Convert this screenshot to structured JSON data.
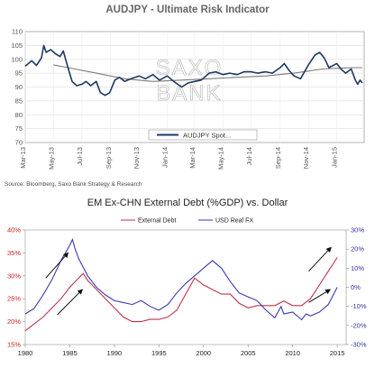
{
  "chart_data": [
    {
      "type": "line",
      "title": "AUDJPY - Ultimate Risk Indicator",
      "ylim": [
        70,
        110
      ],
      "y_ticks": [
        "70",
        "75",
        "80",
        "85",
        "90",
        "95",
        "100",
        "105",
        "110"
      ],
      "x_ticks": [
        "Mar-13",
        "May-13",
        "Jul-13",
        "Sep-13",
        "Nov-13",
        "Jan-14",
        "Mar-14",
        "May-14",
        "Jul-14",
        "Sep-14",
        "Nov-14",
        "Jan-15"
      ],
      "x_range": [
        "2013-03-01",
        "2015-03-01"
      ],
      "grid": true,
      "legend": "bottom-center",
      "watermark": [
        "SAXO",
        "BANK"
      ],
      "source": "Source: Bloomberg, Saxo Bank Strategy & Research",
      "series": [
        {
          "name": "AUDJPY Spot...",
          "color": "#1f3864",
          "points": [
            [
              "2013-03-01",
              97.5
            ],
            [
              "2013-03-15",
              99.5
            ],
            [
              "2013-03-25",
              97.8
            ],
            [
              "2013-04-05",
              100.5
            ],
            [
              "2013-04-10",
              105.0
            ],
            [
              "2013-04-15",
              102.5
            ],
            [
              "2013-04-25",
              103.5
            ],
            [
              "2013-05-05",
              102.0
            ],
            [
              "2013-05-15",
              101.0
            ],
            [
              "2013-05-22",
              103.0
            ],
            [
              "2013-06-01",
              97.0
            ],
            [
              "2013-06-10",
              92.0
            ],
            [
              "2013-06-20",
              90.5
            ],
            [
              "2013-07-01",
              91.0
            ],
            [
              "2013-07-10",
              92.0
            ],
            [
              "2013-07-20",
              90.5
            ],
            [
              "2013-08-01",
              92.0
            ],
            [
              "2013-08-10",
              88.0
            ],
            [
              "2013-08-20",
              87.0
            ],
            [
              "2013-08-30",
              88.0
            ],
            [
              "2013-09-10",
              92.5
            ],
            [
              "2013-09-20",
              93.5
            ],
            [
              "2013-10-01",
              92.0
            ],
            [
              "2013-10-15",
              93.0
            ],
            [
              "2013-11-01",
              94.0
            ],
            [
              "2013-11-15",
              93.0
            ],
            [
              "2013-12-01",
              94.5
            ],
            [
              "2013-12-15",
              92.5
            ],
            [
              "2014-01-01",
              94.0
            ],
            [
              "2014-01-15",
              92.0
            ],
            [
              "2014-02-01",
              90.0
            ],
            [
              "2014-02-15",
              91.5
            ],
            [
              "2014-03-01",
              92.0
            ],
            [
              "2014-03-15",
              92.5
            ],
            [
              "2014-04-01",
              95.0
            ],
            [
              "2014-04-15",
              95.5
            ],
            [
              "2014-05-01",
              94.5
            ],
            [
              "2014-05-15",
              95.0
            ],
            [
              "2014-06-01",
              94.5
            ],
            [
              "2014-06-15",
              95.5
            ],
            [
              "2014-07-01",
              95.5
            ],
            [
              "2014-07-15",
              95.0
            ],
            [
              "2014-08-01",
              95.5
            ],
            [
              "2014-08-15",
              95.0
            ],
            [
              "2014-09-01",
              97.0
            ],
            [
              "2014-09-10",
              98.5
            ],
            [
              "2014-09-20",
              96.0
            ],
            [
              "2014-10-01",
              94.0
            ],
            [
              "2014-10-15",
              93.0
            ],
            [
              "2014-11-01",
              98.0
            ],
            [
              "2014-11-15",
              101.5
            ],
            [
              "2014-11-25",
              102.5
            ],
            [
              "2014-12-05",
              100.5
            ],
            [
              "2014-12-15",
              97.0
            ],
            [
              "2015-01-01",
              98.5
            ],
            [
              "2015-01-10",
              96.5
            ],
            [
              "2015-01-20",
              95.0
            ],
            [
              "2015-02-01",
              96.5
            ],
            [
              "2015-02-10",
              92.5
            ],
            [
              "2015-02-15",
              91.0
            ],
            [
              "2015-02-20",
              92.5
            ],
            [
              "2015-02-25",
              91.5
            ]
          ]
        },
        {
          "name": "",
          "color": "#7a7a7a",
          "points": [
            [
              "2013-05-01",
              98.0
            ],
            [
              "2013-06-01",
              97.0
            ],
            [
              "2013-08-01",
              95.0
            ],
            [
              "2013-10-01",
              93.0
            ],
            [
              "2013-12-01",
              92.0
            ],
            [
              "2014-02-01",
              92.5
            ],
            [
              "2014-04-01",
              93.0
            ],
            [
              "2014-06-01",
              93.5
            ],
            [
              "2014-08-01",
              94.0
            ],
            [
              "2014-10-01",
              95.0
            ],
            [
              "2014-12-01",
              96.5
            ],
            [
              "2015-02-01",
              97.0
            ],
            [
              "2015-02-25",
              97.0
            ]
          ]
        }
      ]
    },
    {
      "type": "line",
      "title": "EM Ex-CHN External Debt (%GDP) vs. Dollar",
      "xlim": [
        1980,
        2016
      ],
      "x_ticks": [
        "1980",
        "1985",
        "1990",
        "1995",
        "2000",
        "2005",
        "2010",
        "2015"
      ],
      "y_left": {
        "ylim": [
          15,
          40
        ],
        "ticks": [
          "15%",
          "20%",
          "25%",
          "30%",
          "35%",
          "40%"
        ],
        "color": "#cc2222"
      },
      "y_right": {
        "ylim": [
          -30,
          30
        ],
        "ticks": [
          "-30%",
          "-20%",
          "-10%",
          "0%",
          "10%",
          "20%",
          "30%"
        ],
        "color": "#3333aa"
      },
      "legend": "top-center",
      "series": [
        {
          "name": "External Debt",
          "axis": "left",
          "color": "#c0304a",
          "points": [
            [
              1980,
              18.0
            ],
            [
              1981,
              19.5
            ],
            [
              1982,
              21.0
            ],
            [
              1983,
              23.0
            ],
            [
              1984,
              25.0
            ],
            [
              1985,
              27.5
            ],
            [
              1986,
              29.5
            ],
            [
              1986.5,
              30.5
            ],
            [
              1987,
              29.0
            ],
            [
              1988,
              27.0
            ],
            [
              1989,
              25.0
            ],
            [
              1990,
              23.0
            ],
            [
              1991,
              21.0
            ],
            [
              1992,
              20.0
            ],
            [
              1993,
              20.0
            ],
            [
              1994,
              20.5
            ],
            [
              1995,
              20.5
            ],
            [
              1996,
              21.0
            ],
            [
              1997,
              22.5
            ],
            [
              1998,
              26.0
            ],
            [
              1999,
              29.5
            ],
            [
              2000,
              28.0
            ],
            [
              2001,
              27.0
            ],
            [
              2002,
              26.0
            ],
            [
              2003,
              26.0
            ],
            [
              2004,
              24.0
            ],
            [
              2005,
              23.0
            ],
            [
              2006,
              23.5
            ],
            [
              2007,
              23.5
            ],
            [
              2008,
              23.5
            ],
            [
              2009,
              24.5
            ],
            [
              2010,
              23.5
            ],
            [
              2011,
              23.5
            ],
            [
              2012,
              25.0
            ],
            [
              2013,
              28.0
            ],
            [
              2014,
              31.0
            ],
            [
              2015,
              34.0
            ]
          ]
        },
        {
          "name": "USD Real FX",
          "axis": "right",
          "color": "#3a3ab0",
          "points": [
            [
              1980,
              -14.0
            ],
            [
              1981,
              -11.0
            ],
            [
              1982,
              -4.0
            ],
            [
              1983,
              4.0
            ],
            [
              1984,
              14.0
            ],
            [
              1985,
              22.0
            ],
            [
              1985.3,
              25.0
            ],
            [
              1985.6,
              20.0
            ],
            [
              1986,
              15.0
            ],
            [
              1987,
              6.0
            ],
            [
              1988,
              0.0
            ],
            [
              1989,
              -4.0
            ],
            [
              1990,
              -7.0
            ],
            [
              1991,
              -8.0
            ],
            [
              1992,
              -9.0
            ],
            [
              1993,
              -7.0
            ],
            [
              1994,
              -10.0
            ],
            [
              1995,
              -12.0
            ],
            [
              1996,
              -9.0
            ],
            [
              1997,
              -3.0
            ],
            [
              1998,
              2.0
            ],
            [
              1999,
              6.0
            ],
            [
              2000,
              10.0
            ],
            [
              2001,
              14.0
            ],
            [
              2002,
              10.0
            ],
            [
              2003,
              3.0
            ],
            [
              2004,
              -3.0
            ],
            [
              2005,
              -5.0
            ],
            [
              2006,
              -7.0
            ],
            [
              2007,
              -12.0
            ],
            [
              2008,
              -16.0
            ],
            [
              2008.7,
              -10.0
            ],
            [
              2009,
              -14.0
            ],
            [
              2010,
              -13.0
            ],
            [
              2011,
              -17.0
            ],
            [
              2011.5,
              -14.0
            ],
            [
              2012,
              -15.0
            ],
            [
              2013,
              -13.0
            ],
            [
              2014,
              -9.0
            ],
            [
              2015,
              0.0
            ]
          ]
        }
      ]
    }
  ]
}
